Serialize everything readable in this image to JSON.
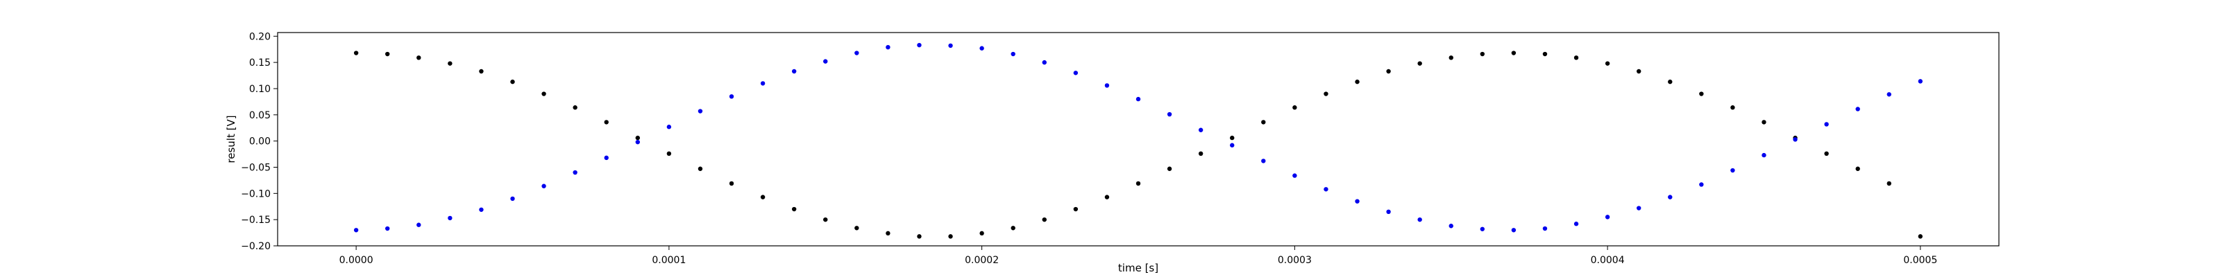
{
  "chart_data": {
    "type": "scatter",
    "title": "",
    "xlabel": "time [s]",
    "ylabel": "result [V]",
    "xlim": [
      -2.51e-05,
      0.0005251
    ],
    "ylim": [
      -0.2,
      0.207
    ],
    "xticks": [
      0.0,
      0.0001,
      0.0002,
      0.0003,
      0.0004,
      0.0005
    ],
    "xtick_labels": [
      "0.0000",
      "0.0001",
      "0.0002",
      "0.0003",
      "0.0004",
      "0.0005"
    ],
    "yticks": [
      -0.2,
      -0.15,
      -0.1,
      -0.05,
      0.0,
      0.05,
      0.1,
      0.15,
      0.2
    ],
    "ytick_labels": [
      "−0.20",
      "−0.15",
      "−0.10",
      "−0.05",
      "0.00",
      "0.05",
      "0.10",
      "0.15",
      "0.20"
    ],
    "grid": false,
    "legend": "none",
    "series": [
      {
        "color": "#000000",
        "marker": "dot",
        "x": [
          0.0,
          1e-05,
          2e-05,
          3e-05,
          4e-05,
          5e-05,
          6e-05,
          7e-05,
          8e-05,
          9e-05,
          0.0001,
          0.00011,
          0.00012,
          0.00013,
          0.00014,
          0.00015,
          0.00016,
          0.00017,
          0.00018,
          0.00019,
          0.0002,
          0.00021,
          0.00022,
          0.00023,
          0.00024,
          0.00025,
          0.00026,
          0.00027,
          0.00028,
          0.00029,
          0.0003,
          0.00031,
          0.00032,
          0.00033,
          0.00034,
          0.00035,
          0.00036,
          0.00037,
          0.00038,
          0.00039,
          0.0004,
          0.00041,
          0.00042,
          0.00043,
          0.00044,
          0.00045,
          0.00046,
          0.00047,
          0.00048,
          0.00049,
          0.0005
        ],
        "y": [
          0.168,
          0.166,
          0.159,
          0.148,
          0.133,
          0.113,
          0.09,
          0.064,
          0.036,
          0.006,
          -0.024,
          -0.053,
          -0.081,
          -0.107,
          -0.13,
          -0.15,
          -0.166,
          -0.176,
          -0.182,
          -0.182,
          -0.176,
          -0.166,
          -0.15,
          -0.13,
          -0.107,
          -0.081,
          -0.053,
          -0.024,
          0.006,
          0.036,
          0.064,
          0.09,
          0.113,
          0.133,
          0.148,
          0.159,
          0.166,
          0.168,
          0.166,
          0.159,
          0.148,
          0.133,
          0.113,
          0.09,
          0.064,
          0.036,
          0.006,
          -0.024,
          -0.053,
          -0.081,
          -0.182
        ]
      },
      {
        "color": "#0000ee",
        "marker": "dot",
        "x": [
          0.0,
          1e-05,
          2e-05,
          3e-05,
          4e-05,
          5e-05,
          6e-05,
          7e-05,
          8e-05,
          9e-05,
          0.0001,
          0.00011,
          0.00012,
          0.00013,
          0.00014,
          0.00015,
          0.00016,
          0.00017,
          0.00018,
          0.00019,
          0.0002,
          0.00021,
          0.00022,
          0.00023,
          0.00024,
          0.00025,
          0.00026,
          0.00027,
          0.00028,
          0.00029,
          0.0003,
          0.00031,
          0.00032,
          0.00033,
          0.00034,
          0.00035,
          0.00036,
          0.00037,
          0.00038,
          0.00039,
          0.0004,
          0.00041,
          0.00042,
          0.00043,
          0.00044,
          0.00045,
          0.00046,
          0.00047,
          0.00048,
          0.00049,
          0.0005
        ],
        "y": [
          -0.17,
          -0.167,
          -0.16,
          -0.147,
          -0.131,
          -0.11,
          -0.086,
          -0.06,
          -0.032,
          -0.002,
          0.027,
          0.057,
          0.085,
          0.11,
          0.133,
          0.152,
          0.168,
          0.179,
          0.183,
          0.182,
          0.177,
          0.166,
          0.15,
          0.13,
          0.106,
          0.08,
          0.051,
          0.021,
          -0.008,
          -0.038,
          -0.066,
          -0.092,
          -0.115,
          -0.135,
          -0.15,
          -0.162,
          -0.168,
          -0.17,
          -0.167,
          -0.158,
          -0.145,
          -0.128,
          -0.107,
          -0.083,
          -0.056,
          -0.027,
          0.003,
          0.032,
          0.061,
          0.089,
          0.114
        ]
      }
    ]
  }
}
